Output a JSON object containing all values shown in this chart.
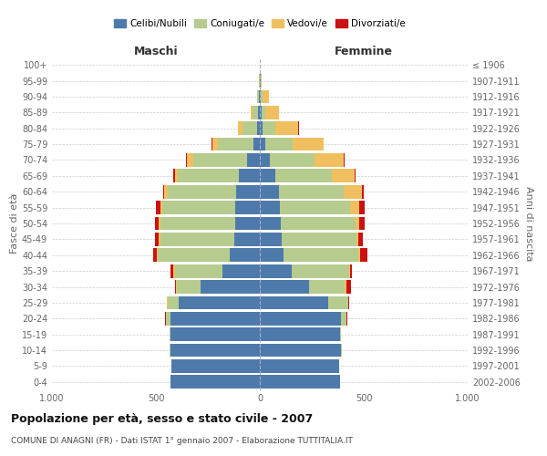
{
  "age_groups": [
    "0-4",
    "5-9",
    "10-14",
    "15-19",
    "20-24",
    "25-29",
    "30-34",
    "35-39",
    "40-44",
    "45-49",
    "50-54",
    "55-59",
    "60-64",
    "65-69",
    "70-74",
    "75-79",
    "80-84",
    "85-89",
    "90-94",
    "95-99",
    "100+"
  ],
  "birth_years": [
    "2002-2006",
    "1997-2001",
    "1992-1996",
    "1987-1991",
    "1982-1986",
    "1977-1981",
    "1972-1976",
    "1967-1971",
    "1962-1966",
    "1957-1961",
    "1952-1956",
    "1947-1951",
    "1942-1946",
    "1937-1941",
    "1932-1936",
    "1927-1931",
    "1922-1926",
    "1917-1921",
    "1912-1916",
    "1907-1911",
    "≤ 1906"
  ],
  "maschi": {
    "celibi": [
      430,
      425,
      430,
      430,
      430,
      390,
      285,
      180,
      145,
      125,
      120,
      120,
      115,
      100,
      60,
      30,
      15,
      8,
      5,
      2,
      0
    ],
    "coniugati": [
      0,
      0,
      3,
      5,
      20,
      55,
      115,
      230,
      345,
      355,
      360,
      350,
      330,
      295,
      260,
      170,
      70,
      25,
      8,
      2,
      0
    ],
    "vedovi": [
      0,
      0,
      0,
      0,
      2,
      2,
      5,
      5,
      5,
      5,
      5,
      10,
      15,
      15,
      30,
      30,
      20,
      10,
      2,
      0,
      0
    ],
    "divorziati": [
      0,
      0,
      0,
      0,
      2,
      2,
      5,
      15,
      20,
      20,
      20,
      20,
      5,
      5,
      5,
      2,
      2,
      0,
      0,
      0,
      0
    ]
  },
  "femmine": {
    "nubili": [
      385,
      380,
      390,
      385,
      390,
      330,
      235,
      155,
      115,
      105,
      100,
      95,
      90,
      75,
      50,
      25,
      15,
      8,
      5,
      3,
      0
    ],
    "coniugate": [
      0,
      0,
      3,
      5,
      25,
      95,
      175,
      275,
      360,
      360,
      360,
      340,
      315,
      270,
      215,
      135,
      60,
      20,
      8,
      2,
      0
    ],
    "vedove": [
      0,
      0,
      0,
      0,
      2,
      2,
      5,
      5,
      8,
      10,
      20,
      45,
      85,
      110,
      140,
      145,
      110,
      65,
      30,
      5,
      0
    ],
    "divorziate": [
      0,
      0,
      0,
      0,
      2,
      5,
      25,
      10,
      35,
      20,
      25,
      25,
      8,
      5,
      5,
      2,
      2,
      0,
      0,
      0,
      0
    ]
  },
  "colors": {
    "celibi_nubili": "#4e7aab",
    "coniugati": "#b5cc8e",
    "vedovi": "#f0c060",
    "divorziati": "#cc1111"
  },
  "xlim": 1000,
  "title": "Popolazione per età, sesso e stato civile - 2007",
  "subtitle": "COMUNE DI ANAGNI (FR) - Dati ISTAT 1° gennaio 2007 - Elaborazione TUTTITALIA.IT",
  "ylabel_left": "Fasce di età",
  "ylabel_right": "Anni di nascita",
  "xlabel_left": "Maschi",
  "xlabel_right": "Femmine",
  "legend_labels": [
    "Celibi/Nubili",
    "Coniugati/e",
    "Vedovi/e",
    "Divorziati/e"
  ],
  "bg_color": "#ffffff",
  "grid_color": "#cccccc",
  "bar_height": 0.85
}
